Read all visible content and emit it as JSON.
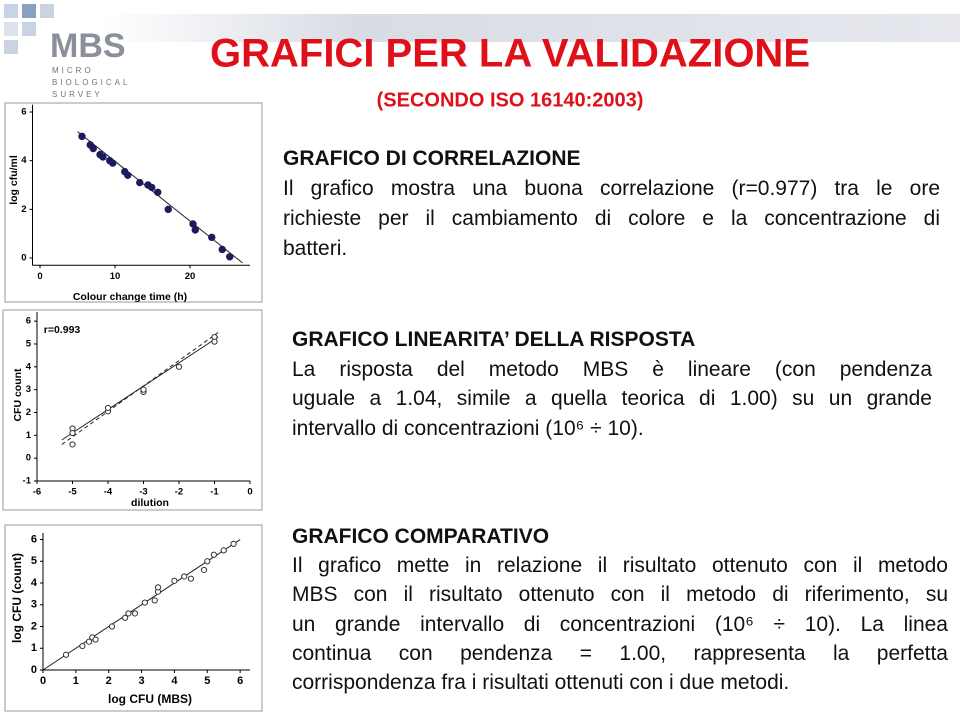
{
  "logo": {
    "name": "MBS",
    "subtitle": [
      "MICRO",
      "BIOLOGICAL",
      "SURVEY"
    ]
  },
  "header": {
    "title": "GRAFICI PER LA VALIDAZIONE",
    "subtitle": "(SECONDO ISO 16140:2003)"
  },
  "sections": [
    {
      "heading": "GRAFICO DI CORRELAZIONE",
      "lines": [
        "Il grafico mostra una buona correlazione (r=0.977) tra le ore",
        "richieste per il cambiamento di colore e la concentrazione di",
        "batteri."
      ],
      "chart": {
        "type": "scatter",
        "color": "#1c1c5a",
        "filled": true,
        "x": [
          5.6,
          6.7,
          7.1,
          8.0,
          8.4,
          9.3,
          9.7,
          11.3,
          11.7,
          13.3,
          14.4,
          14.9,
          15.7,
          17.1,
          20.4,
          20.7,
          22.9,
          24.3,
          25.3
        ],
        "y": [
          5.0,
          4.65,
          4.5,
          4.25,
          4.15,
          4.0,
          3.9,
          3.55,
          3.4,
          3.1,
          3.0,
          2.9,
          2.7,
          2.0,
          1.4,
          1.15,
          0.85,
          0.35,
          0.05
        ],
        "fits": [
          {
            "x": [
              5,
              27
            ],
            "y": [
              5.2,
              -0.2
            ],
            "dash": false
          }
        ],
        "xlim": [
          -1,
          28
        ],
        "ylim": [
          -0.3,
          6.3
        ],
        "xticks": [
          0,
          10,
          20
        ],
        "yticks": [
          0,
          2,
          4,
          6
        ],
        "xlabel": "Colour change time (h)",
        "ylabel": "log cfu/ml"
      }
    },
    {
      "heading": "GRAFICO LINEARITA’ DELLA RISPOSTA",
      "lines": [
        "La risposta del metodo MBS è lineare (con pendenza",
        "uguale a 1.04, simile a quella teorica di 1.00) su un grande",
        "intervallo di concentrazioni (10⁶ ÷ 10)."
      ],
      "chart": {
        "type": "scatter",
        "color": "#333333",
        "filled": false,
        "x": [
          -5,
          -5,
          -5,
          -4,
          -4,
          -3,
          -3,
          -2,
          -1,
          -1
        ],
        "y": [
          1.3,
          1.1,
          0.6,
          2.05,
          2.2,
          2.9,
          3.0,
          4.0,
          5.3,
          5.1
        ],
        "fits": [
          {
            "x": [
              -5.3,
              -0.9
            ],
            "y": [
              0.8,
              5.3
            ],
            "dash": false
          },
          {
            "x": [
              -5.3,
              -0.9
            ],
            "y": [
              0.6,
              5.5
            ],
            "dash": true
          }
        ],
        "xlim": [
          -6,
          0
        ],
        "ylim": [
          -1,
          6.4
        ],
        "xticks": [
          -6,
          -5,
          -4,
          -3,
          -2,
          -1,
          0
        ],
        "yticks": [
          -1,
          0,
          1,
          2,
          3,
          4,
          5,
          6
        ],
        "xlabel": "dilution",
        "ylabel": "CFU count",
        "annotation": "r=0.993"
      }
    },
    {
      "heading": "GRAFICO COMPARATIVO",
      "lines": [
        "Il grafico mette in relazione il risultato ottenuto con il metodo",
        "MBS con il risultato ottenuto con il metodo di riferimento, su",
        "un grande intervallo di concentrazioni (10⁶ ÷ 10). La linea",
        "continua con pendenza = 1.00, rappresenta la perfetta",
        "corrispondenza fra i risultati ottenuti con i due metodi."
      ],
      "chart": {
        "type": "scatter",
        "color": "#333333",
        "filled": false,
        "x": [
          0.7,
          1.2,
          1.4,
          1.5,
          1.6,
          2.1,
          2.5,
          2.6,
          2.8,
          3.1,
          3.4,
          3.5,
          3.5,
          4.0,
          4.3,
          4.5,
          4.9,
          5.0,
          5.2,
          5.5,
          5.8
        ],
        "y": [
          0.7,
          1.1,
          1.3,
          1.5,
          1.4,
          2.0,
          2.4,
          2.6,
          2.6,
          3.1,
          3.2,
          3.6,
          3.8,
          4.1,
          4.3,
          4.2,
          4.6,
          5.0,
          5.3,
          5.5,
          5.8
        ],
        "fits": [
          {
            "x": [
              0,
              6
            ],
            "y": [
              0,
              6
            ],
            "dash": false
          }
        ],
        "xlim": [
          0,
          6.3
        ],
        "ylim": [
          0,
          6.3
        ],
        "xticks": [
          0,
          1,
          2,
          3,
          4,
          5,
          6
        ],
        "yticks": [
          0,
          1,
          2,
          3,
          4,
          5,
          6
        ],
        "xlabel": "log CFU (MBS)",
        "ylabel": "log CFU (count)"
      }
    }
  ]
}
